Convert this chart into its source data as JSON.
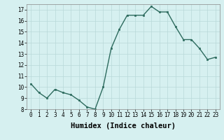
{
  "x": [
    0,
    1,
    2,
    3,
    4,
    5,
    6,
    7,
    8,
    9,
    10,
    11,
    12,
    13,
    14,
    15,
    16,
    17,
    18,
    19,
    20,
    21,
    22,
    23
  ],
  "y": [
    10.3,
    9.5,
    9.0,
    9.8,
    9.5,
    9.3,
    8.8,
    8.2,
    8.0,
    10.0,
    13.5,
    15.2,
    16.5,
    16.5,
    16.5,
    17.3,
    16.8,
    16.8,
    15.5,
    14.3,
    14.3,
    13.5,
    12.5,
    12.7
  ],
  "line_color": "#2d6b5e",
  "marker": "s",
  "marker_size": 2,
  "bg_color": "#d6f0f0",
  "grid_color": "#b8d8d8",
  "xlabel": "Humidex (Indice chaleur)",
  "ylim": [
    8,
    17.5
  ],
  "xlim": [
    -0.5,
    23.5
  ],
  "yticks": [
    8,
    9,
    10,
    11,
    12,
    13,
    14,
    15,
    16,
    17
  ],
  "xticks": [
    0,
    1,
    2,
    3,
    4,
    5,
    6,
    7,
    8,
    9,
    10,
    11,
    12,
    13,
    14,
    15,
    16,
    17,
    18,
    19,
    20,
    21,
    22,
    23
  ],
  "tick_label_fontsize": 5.5,
  "xlabel_fontsize": 7.5,
  "line_width": 1.0
}
